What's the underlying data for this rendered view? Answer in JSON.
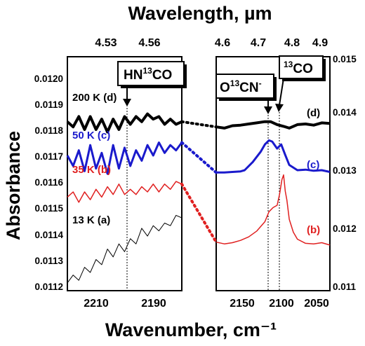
{
  "chart_data": {
    "type": "line",
    "top_axis_label": "Wavelength, µm",
    "xlabel": "Wavenumber, cm⁻¹",
    "ylabel": "Absorbance",
    "top_ticks_left": [
      "4.53",
      "4.56"
    ],
    "top_ticks_right": [
      "4.6",
      "4.7",
      "4.8",
      "4.9"
    ],
    "panels": [
      {
        "name": "left",
        "xlim": [
          2225,
          2185
        ],
        "ylim": [
          0.0112,
          0.0121
        ],
        "x_ticks": [
          2210,
          2190
        ],
        "y_ticks": [
          "0.0112",
          "0.0113",
          "0.0114",
          "0.0115",
          "0.0116",
          "0.0117",
          "0.0118",
          "0.0119",
          "0.0120"
        ],
        "marker_x": 2203,
        "callout": {
          "pre": "HN",
          "sup": "13",
          "post": "CO"
        }
      },
      {
        "name": "right",
        "xlim": [
          2175,
          2035
        ],
        "ylim": [
          0.011,
          0.015
        ],
        "x_ticks": [
          2150,
          2100,
          2050
        ],
        "y_ticks": [
          "0.011",
          "0.012",
          "0.013",
          "0.014",
          "0.015"
        ],
        "marker_x": [
          2106,
          2092
        ],
        "callouts": [
          {
            "pre": "O",
            "sup": "13",
            "post": "CN",
            "sup2": "-"
          },
          {
            "pre": "",
            "sup": "13",
            "post": "CO"
          }
        ]
      }
    ],
    "series": [
      {
        "label": "200 K (d)",
        "right_label": "(d)",
        "color": "#000000",
        "left_x": [
          2225,
          2223,
          2221,
          2219,
          2217,
          2215,
          2213,
          2211,
          2209,
          2207,
          2205,
          2203,
          2201,
          2199,
          2197,
          2195,
          2193,
          2191,
          2189,
          2187,
          2185
        ],
        "left_y": [
          0.01185,
          0.01183,
          0.01187,
          0.01182,
          0.01187,
          0.01182,
          0.01186,
          0.01181,
          0.01186,
          0.01182,
          0.01187,
          0.01184,
          0.01187,
          0.01185,
          0.01188,
          0.01186,
          0.01187,
          0.01184,
          0.01186,
          0.01184,
          0.01185
        ],
        "right_x": [
          2175,
          2165,
          2155,
          2145,
          2135,
          2125,
          2115,
          2108,
          2100,
          2092,
          2085,
          2075,
          2065,
          2055,
          2045,
          2035
        ],
        "right_y": [
          0.0138,
          0.01378,
          0.01382,
          0.01383,
          0.01385,
          0.01387,
          0.01389,
          0.01389,
          0.01384,
          0.01381,
          0.01378,
          0.01384,
          0.01385,
          0.01383,
          0.01387,
          0.01386
        ]
      },
      {
        "label": "50 K (c)",
        "right_label": "(c)",
        "color": "#1a1acc",
        "left_x": [
          2225,
          2223,
          2221,
          2219,
          2217,
          2215,
          2213,
          2211,
          2209,
          2207,
          2205,
          2203,
          2201,
          2199,
          2197,
          2195,
          2193,
          2191,
          2189,
          2187,
          2185
        ],
        "left_y": [
          0.01172,
          0.01168,
          0.01174,
          0.01166,
          0.01176,
          0.01167,
          0.01173,
          0.01165,
          0.01176,
          0.01167,
          0.01175,
          0.01168,
          0.01174,
          0.0117,
          0.01176,
          0.01172,
          0.01177,
          0.01173,
          0.01176,
          0.01174,
          0.01177
        ],
        "right_x": [
          2175,
          2165,
          2155,
          2145,
          2140,
          2130,
          2120,
          2115,
          2110,
          2106,
          2100,
          2095,
          2090,
          2085,
          2075,
          2065,
          2055,
          2045,
          2035
        ],
        "right_y": [
          0.01302,
          0.01302,
          0.01303,
          0.01304,
          0.01306,
          0.0132,
          0.01338,
          0.0135,
          0.01357,
          0.01355,
          0.01343,
          0.0135,
          0.01332,
          0.01315,
          0.01306,
          0.01307,
          0.01305,
          0.01306,
          0.01303
        ]
      },
      {
        "label": "35 K (b)",
        "right_label": "(b)",
        "color": "#e02020",
        "left_x": [
          2225,
          2223,
          2221,
          2219,
          2217,
          2215,
          2213,
          2211,
          2209,
          2207,
          2205,
          2203,
          2201,
          2199,
          2197,
          2195,
          2193,
          2191,
          2189,
          2187,
          2185
        ],
        "left_y": [
          0.01156,
          0.01158,
          0.01154,
          0.01158,
          0.01155,
          0.01159,
          0.01156,
          0.0116,
          0.01157,
          0.01161,
          0.01157,
          0.01159,
          0.01157,
          0.0116,
          0.01158,
          0.01161,
          0.01158,
          0.01161,
          0.01159,
          0.01162,
          0.01161
        ],
        "right_x": [
          2175,
          2165,
          2155,
          2145,
          2135,
          2125,
          2115,
          2110,
          2105,
          2100,
          2097,
          2094,
          2092,
          2090,
          2088,
          2085,
          2080,
          2075,
          2065,
          2055,
          2045,
          2035
        ],
        "right_y": [
          0.01183,
          0.0118,
          0.01182,
          0.01186,
          0.01192,
          0.01202,
          0.01218,
          0.01235,
          0.01242,
          0.01246,
          0.01265,
          0.0129,
          0.01298,
          0.0127,
          0.01255,
          0.01222,
          0.012,
          0.01188,
          0.01181,
          0.0118,
          0.01182,
          0.01178
        ]
      },
      {
        "label": "13 K (a)",
        "right_label": "",
        "color": "#000000",
        "left_x": [
          2225,
          2223,
          2221,
          2219,
          2217,
          2215,
          2213,
          2211,
          2209,
          2207,
          2205,
          2203,
          2201,
          2199,
          2197,
          2195,
          2193,
          2191,
          2189,
          2187,
          2185
        ],
        "left_y": [
          0.01123,
          0.01126,
          0.01124,
          0.01129,
          0.01127,
          0.01132,
          0.0113,
          0.01136,
          0.01133,
          0.01138,
          0.01135,
          0.0114,
          0.01138,
          0.01144,
          0.01141,
          0.01145,
          0.01143,
          0.01146,
          0.01145,
          0.01149,
          0.01148
        ],
        "right_x": [],
        "right_y": []
      }
    ]
  }
}
